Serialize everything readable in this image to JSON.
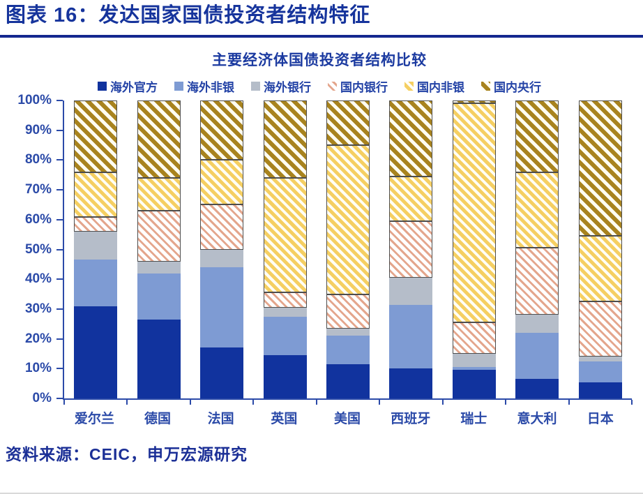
{
  "header": {
    "title": "图表 16：发达国家国债投资者结构特征"
  },
  "source": {
    "label": "资料来源：CEIC，申万宏源研究"
  },
  "colors": {
    "title_navy": "#16349C",
    "rule_navy": "#14278F",
    "axis_blue": "#2B4AA8",
    "legend_text": "#2443A6"
  },
  "chart_data": {
    "type": "bar",
    "stacked": true,
    "title": "主要经济体国债投资者结构比较",
    "categories": [
      "爱尔兰",
      "德国",
      "法国",
      "英国",
      "美国",
      "西班牙",
      "瑞士",
      "意大利",
      "日本"
    ],
    "series": [
      {
        "name": "海外官方",
        "style": "solid",
        "color": "#11339E",
        "values": [
          31,
          26.5,
          17,
          14.5,
          11.5,
          10,
          9.5,
          6.5,
          5.5
        ]
      },
      {
        "name": "海外非银",
        "style": "solid",
        "color": "#7E9BD3",
        "values": [
          15.5,
          15.5,
          27,
          13,
          9.5,
          21.5,
          1,
          15.5,
          7
        ]
      },
      {
        "name": "海外银行",
        "style": "solid",
        "color": "#B5BDC9",
        "values": [
          9.5,
          4,
          6,
          3,
          2.5,
          9,
          4.5,
          6,
          1.5
        ]
      },
      {
        "name": "国内银行",
        "style": "hatch",
        "color": "#E4A68D",
        "bg": "#FFFFFF",
        "stripe": [
          5,
          3
        ],
        "border": "#4d4d4d",
        "values": [
          5,
          17,
          15,
          5,
          11.5,
          19,
          10.5,
          22.5,
          18.5
        ]
      },
      {
        "name": "国内非银",
        "style": "hatch",
        "color": "#F5CF62",
        "bg": "#FFFEF6",
        "stripe": [
          4,
          5
        ],
        "border": "#4d4d4d",
        "values": [
          15,
          11,
          15,
          38.5,
          50,
          15,
          73.5,
          25.5,
          22
        ]
      },
      {
        "name": "国内央行",
        "style": "hatch",
        "color": "#A8831E",
        "bg": "#FFFDF2",
        "stripe": [
          5,
          6
        ],
        "border": "#4d4d4d",
        "values": [
          24,
          26,
          20,
          26,
          15,
          25.5,
          1,
          24,
          45.5
        ]
      }
    ],
    "y_axis": {
      "min": 0,
      "max": 100,
      "step": 10,
      "labels": [
        "0%",
        "10%",
        "20%",
        "30%",
        "40%",
        "50%",
        "60%",
        "70%",
        "80%",
        "90%",
        "100%"
      ]
    },
    "legend_position": "top",
    "grid": false,
    "unit": "percent-of-total"
  }
}
